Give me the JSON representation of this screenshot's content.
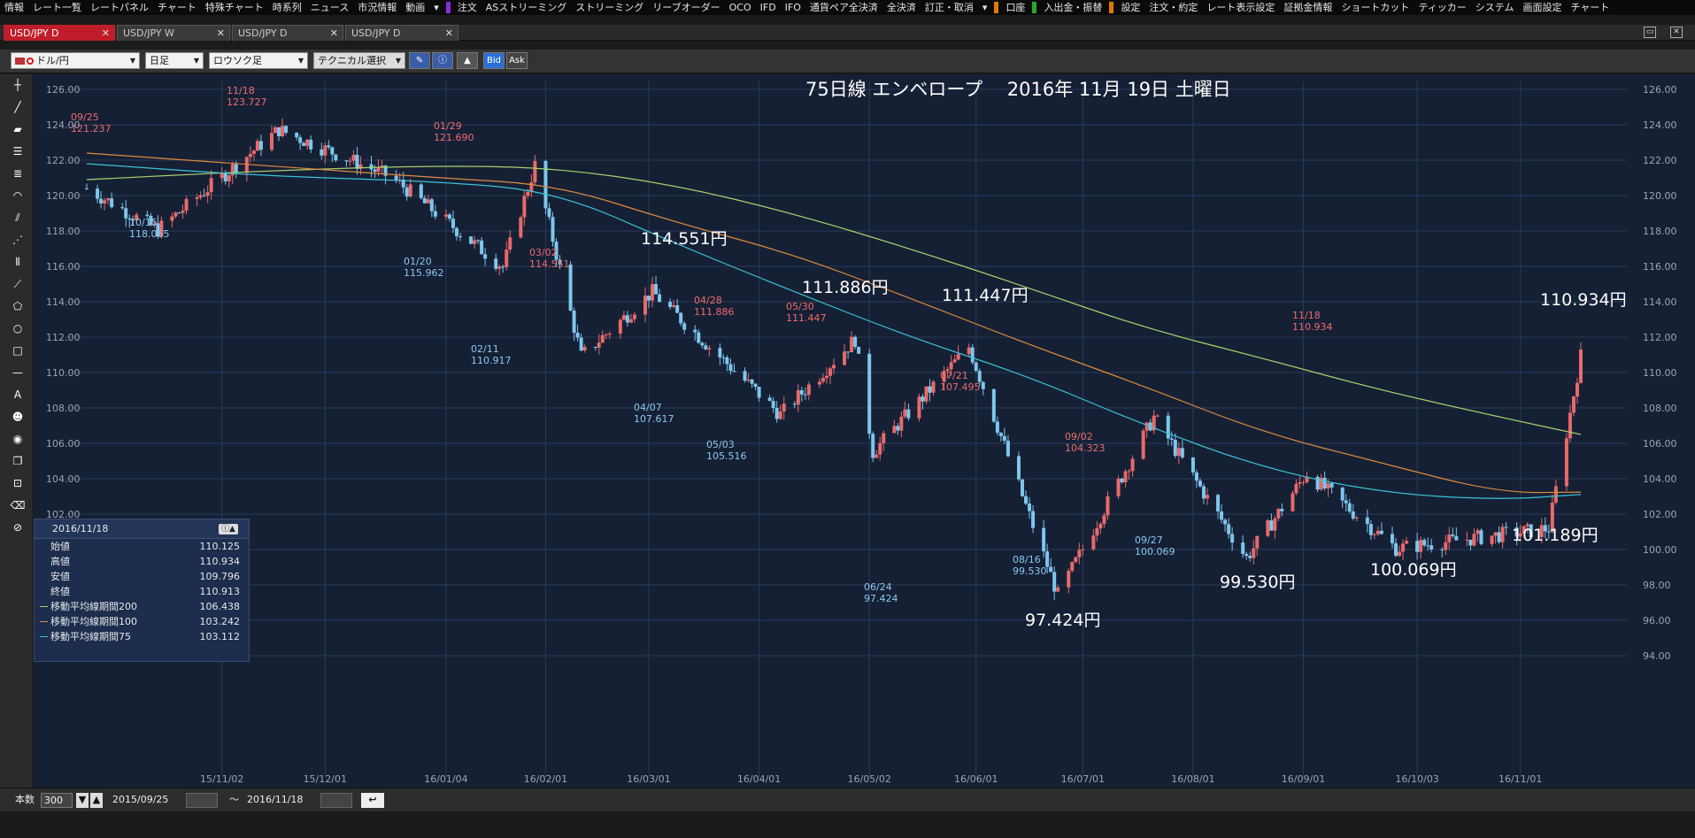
{
  "menu": {
    "items": [
      "情報",
      "レート一覧",
      "レートパネル",
      "チャート",
      "特殊チャート",
      "時系列",
      "ニュース",
      "市況情報",
      "動画",
      "▾",
      "注文",
      "ASストリーミング",
      "ストリーミング",
      "リーブオーダー",
      "OCO",
      "IFD",
      "IFO",
      "通貨ペア全決済",
      "全決済",
      "訂正・取消",
      "▾",
      "口座",
      "入出金・振替",
      "設定",
      "注文・約定",
      "レート表示設定",
      "証拠金情報",
      "ショートカット",
      "ティッカー",
      "システム",
      "画面設定",
      "チャート"
    ]
  },
  "tabs": [
    {
      "label": "USD/JPY D",
      "active": true
    },
    {
      "label": "USD/JPY W",
      "active": false
    },
    {
      "label": "USD/JPY D",
      "active": false
    },
    {
      "label": "USD/JPY D",
      "active": false
    }
  ],
  "toolbar": {
    "pair": "ドル/円",
    "period": "日足",
    "style": "ロウソク足",
    "technical": "テクニカル選択",
    "bid": "Bid",
    "ask": "Ask"
  },
  "bottombar": {
    "count_label": "本数",
    "count_value": "300",
    "from_date": "2015/09/25",
    "tilde": "〜",
    "to_date": "2016/11/18"
  },
  "infopanel": {
    "date": "2016/11/18",
    "rows": [
      {
        "label": "始値",
        "value": "110.125"
      },
      {
        "label": "高値",
        "value": "110.934"
      },
      {
        "label": "安値",
        "value": "109.796"
      },
      {
        "label": "終値",
        "value": "110.913"
      },
      {
        "label": "移動平均線期間200",
        "value": "106.438",
        "color": "#a8d26a"
      },
      {
        "label": "移動平均線期間100",
        "value": "103.242",
        "color": "#e08a3c"
      },
      {
        "label": "移動平均線期間75",
        "value": "103.112",
        "color": "#3cc3d6"
      }
    ]
  },
  "chart_data": {
    "type": "candlestick",
    "title": "75日線 エンベロープ　 2016年 11月 19日 土曜日",
    "ylim": [
      94,
      126
    ],
    "yticks": [
      "126.00",
      "124.00",
      "122.00",
      "120.00",
      "118.00",
      "116.00",
      "114.00",
      "112.00",
      "110.00",
      "108.00",
      "106.00",
      "104.00",
      "102.00",
      "100.00",
      "98.00",
      "96.00",
      "94.00"
    ],
    "xtick_labels": [
      "15/11/02",
      "15/12/01",
      "16/01/04",
      "16/02/01",
      "16/03/01",
      "16/04/01",
      "16/05/02",
      "16/06/01",
      "16/07/01",
      "16/08/01",
      "16/09/01",
      "16/10/03",
      "16/11/01"
    ],
    "colors": {
      "up": "#e76a6a",
      "down": "#7ec6ec",
      "ma200": "#a8d26a",
      "ma100": "#e08a3c",
      "ma75": "#3cc3d6",
      "high_label": "#ef6b6b",
      "low_label": "#8cc8ee"
    },
    "ohlc_keypoints": [
      {
        "date": "2015/09/25",
        "value": 120.4
      },
      {
        "date": "2015/10/15",
        "value": 118.065
      },
      {
        "date": "2015/11/18",
        "value": 123.727
      },
      {
        "date": "2015/12/20",
        "value": 121.0
      },
      {
        "date": "2016/01/20",
        "value": 115.962
      },
      {
        "date": "2016/01/29",
        "value": 121.69
      },
      {
        "date": "2016/02/11",
        "value": 110.917
      },
      {
        "date": "2016/03/02",
        "value": 114.551
      },
      {
        "date": "2016/04/07",
        "value": 107.617
      },
      {
        "date": "2016/04/28",
        "value": 111.886
      },
      {
        "date": "2016/05/03",
        "value": 105.516
      },
      {
        "date": "2016/05/30",
        "value": 111.447
      },
      {
        "date": "2016/06/24",
        "value": 97.424
      },
      {
        "date": "2016/07/21",
        "value": 107.495
      },
      {
        "date": "2016/08/16",
        "value": 99.53
      },
      {
        "date": "2016/09/02",
        "value": 104.323
      },
      {
        "date": "2016/09/27",
        "value": 100.069
      },
      {
        "date": "2016/11/09",
        "value": 101.189
      },
      {
        "date": "2016/11/18",
        "value": 110.934
      }
    ],
    "marked_highs": [
      {
        "date": "09/25",
        "price": "121.237"
      },
      {
        "date": "11/18",
        "price": "123.727"
      },
      {
        "date": "01/29",
        "price": "121.690"
      },
      {
        "date": "03/02",
        "price": "114.551"
      },
      {
        "date": "04/28",
        "price": "111.886"
      },
      {
        "date": "05/30",
        "price": "111.447"
      },
      {
        "date": "07/21",
        "price": "107.495"
      },
      {
        "date": "09/02",
        "price": "104.323"
      },
      {
        "date": "11/18",
        "price": "110.934"
      }
    ],
    "marked_lows": [
      {
        "date": "10/15",
        "price": "118.065"
      },
      {
        "date": "01/20",
        "price": "115.962"
      },
      {
        "date": "02/11",
        "price": "110.917"
      },
      {
        "date": "04/07",
        "price": "107.617"
      },
      {
        "date": "05/03",
        "price": "105.516"
      },
      {
        "date": "06/24",
        "price": "97.424"
      },
      {
        "date": "08/16",
        "price": "99.530"
      },
      {
        "date": "09/27",
        "price": "100.069"
      }
    ],
    "annotations": [
      {
        "text": "114.551円"
      },
      {
        "text": "111.886円"
      },
      {
        "text": "111.447円"
      },
      {
        "text": "110.934円"
      },
      {
        "text": "101.189円"
      },
      {
        "text": "97.424円"
      },
      {
        "text": "99.530円"
      },
      {
        "text": "100.069円"
      }
    ],
    "ma200": [
      [
        0,
        120.9
      ],
      [
        0.15,
        121.4
      ],
      [
        0.3,
        121.7
      ],
      [
        0.4,
        121.55
      ],
      [
        0.5,
        120.6
      ],
      [
        0.6,
        119.0
      ],
      [
        0.7,
        117.0
      ],
      [
        0.8,
        114.8
      ],
      [
        0.9,
        112.5
      ],
      [
        1.0,
        110.8
      ],
      [
        1.1,
        109.0
      ],
      [
        1.2,
        107.5
      ],
      [
        1.27,
        106.5
      ]
    ],
    "ma100": [
      [
        0,
        122.4
      ],
      [
        0.15,
        121.7
      ],
      [
        0.3,
        121.0
      ],
      [
        0.4,
        120.6
      ],
      [
        0.5,
        118.5
      ],
      [
        0.6,
        116.7
      ],
      [
        0.7,
        114.2
      ],
      [
        0.8,
        111.6
      ],
      [
        0.9,
        109.2
      ],
      [
        1.0,
        106.6
      ],
      [
        1.1,
        104.9
      ],
      [
        1.2,
        103.2
      ],
      [
        1.27,
        103.242
      ]
    ],
    "ma75": [
      [
        0,
        121.8
      ],
      [
        0.15,
        121.1
      ],
      [
        0.3,
        120.8
      ],
      [
        0.4,
        120.2
      ],
      [
        0.5,
        117.3
      ],
      [
        0.6,
        114.6
      ],
      [
        0.7,
        112.0
      ],
      [
        0.8,
        109.8
      ],
      [
        0.9,
        107.0
      ],
      [
        1.0,
        104.6
      ],
      [
        1.1,
        103.2
      ],
      [
        1.2,
        102.8
      ],
      [
        1.27,
        103.112
      ]
    ]
  }
}
